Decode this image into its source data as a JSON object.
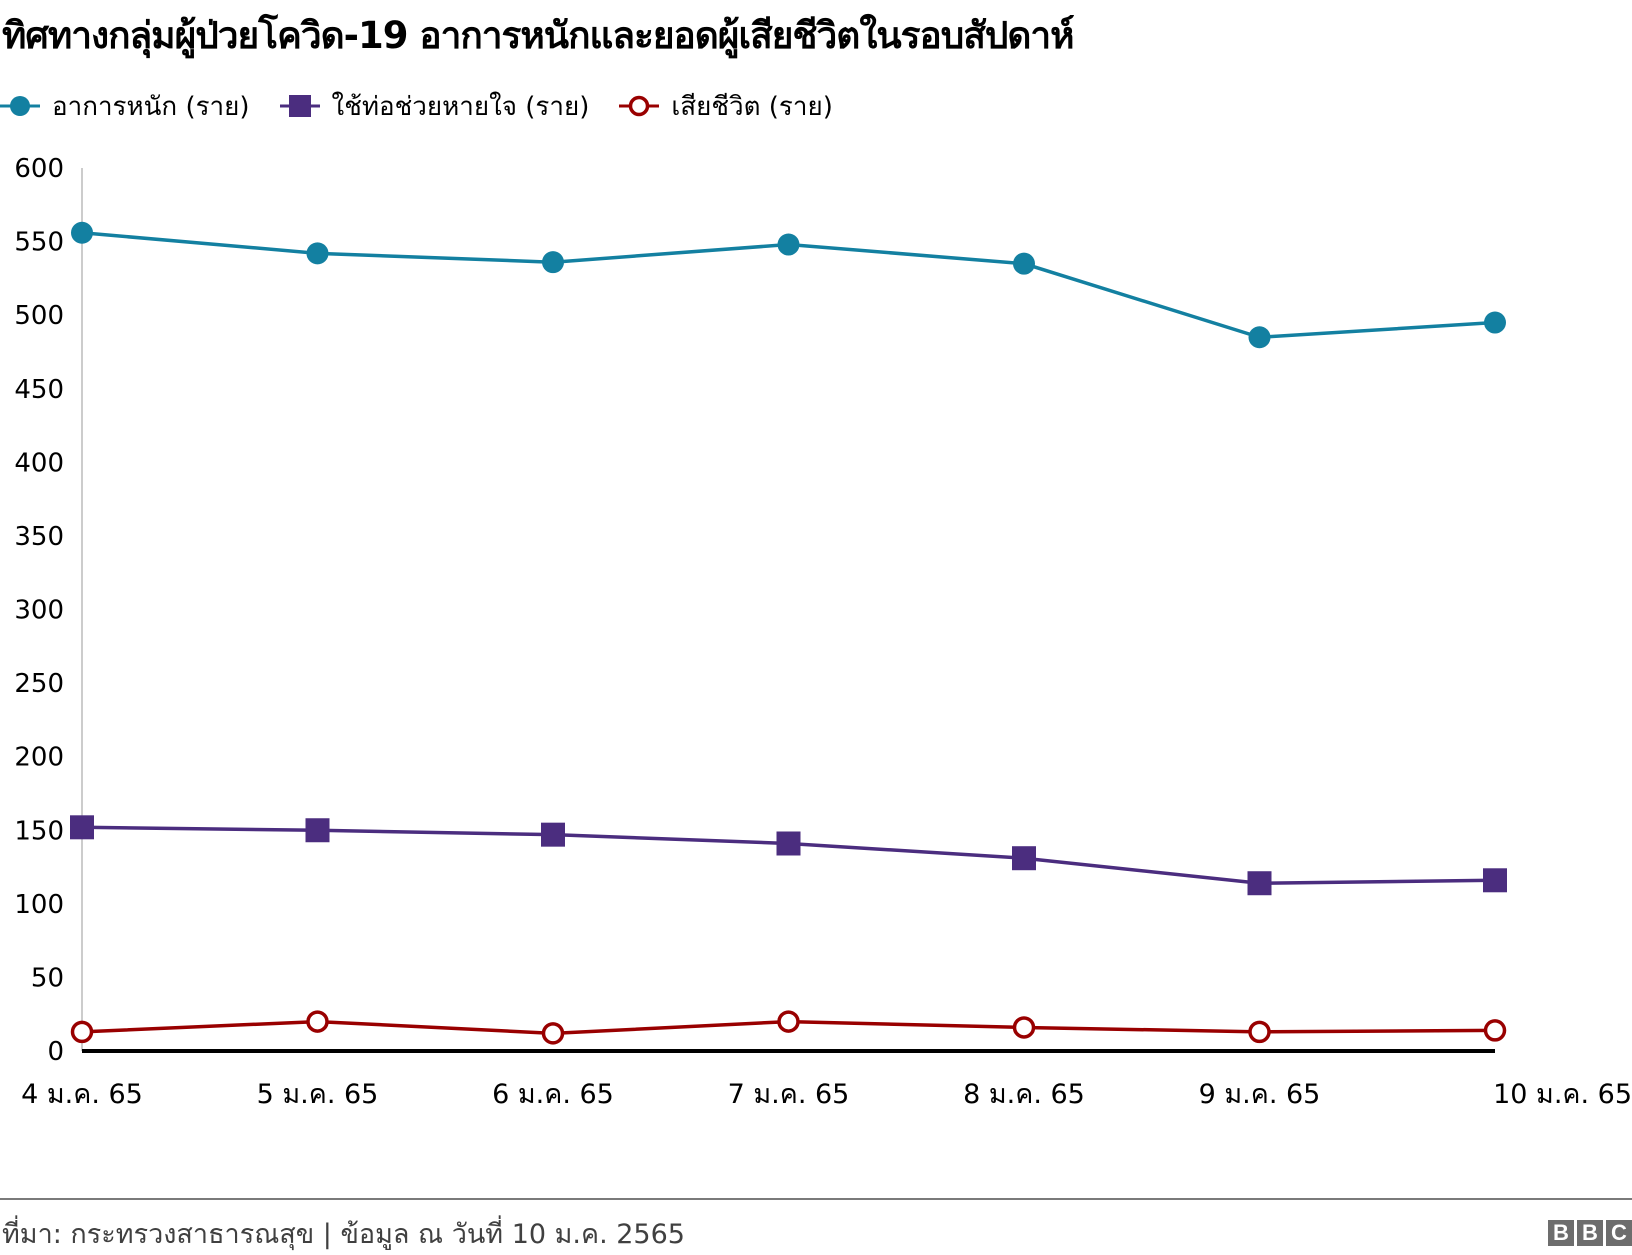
{
  "title": "ทิศทางกลุ่มผู้ป่วยโควิด-19 อาการหนักและยอดผู้เสียชีวิตในรอบสัปดาห์",
  "legend": [
    {
      "label": "อาการหนัก (ราย)",
      "marker": "filled-circle",
      "color": "#1380A1"
    },
    {
      "label": "ใช้ท่อช่วยหายใจ (ราย)",
      "marker": "filled-square",
      "color": "#4B2D7F"
    },
    {
      "label": "เสียชีวิต (ราย)",
      "marker": "hollow-circle",
      "color": "#990000"
    }
  ],
  "footer": {
    "source": "ที่มา: กระทรวงสาธารณสุข | ข้อมูล ณ วันที่ 10 ม.ค. 2565",
    "logo": [
      "B",
      "B",
      "C"
    ]
  },
  "chart_data": {
    "type": "line",
    "title": "ทิศทางกลุ่มผู้ป่วยโควิด-19 อาการหนักและยอดผู้เสียชีวิตในรอบสัปดาห์",
    "xlabel": "",
    "ylabel": "",
    "ylim": [
      0,
      600
    ],
    "yticks": [
      0,
      50,
      100,
      150,
      200,
      250,
      300,
      350,
      400,
      450,
      500,
      550,
      600
    ],
    "categories": [
      "4 ม.ค. 65",
      "5 ม.ค. 65",
      "6 ม.ค. 65",
      "7 ม.ค. 65",
      "8 ม.ค. 65",
      "9 ม.ค. 65",
      "10 ม.ค. 65"
    ],
    "legend_position": "top-left",
    "grid": false,
    "series": [
      {
        "name": "อาการหนัก (ราย)",
        "color": "#1380A1",
        "marker": "filled-circle",
        "values": [
          556,
          542,
          536,
          548,
          535,
          485,
          495
        ]
      },
      {
        "name": "ใช้ท่อช่วยหายใจ (ราย)",
        "color": "#4B2D7F",
        "marker": "filled-square",
        "values": [
          152,
          150,
          147,
          141,
          131,
          114,
          116
        ]
      },
      {
        "name": "เสียชีวิต (ราย)",
        "color": "#990000",
        "marker": "hollow-circle",
        "values": [
          13,
          20,
          12,
          20,
          16,
          13,
          14
        ]
      }
    ]
  }
}
